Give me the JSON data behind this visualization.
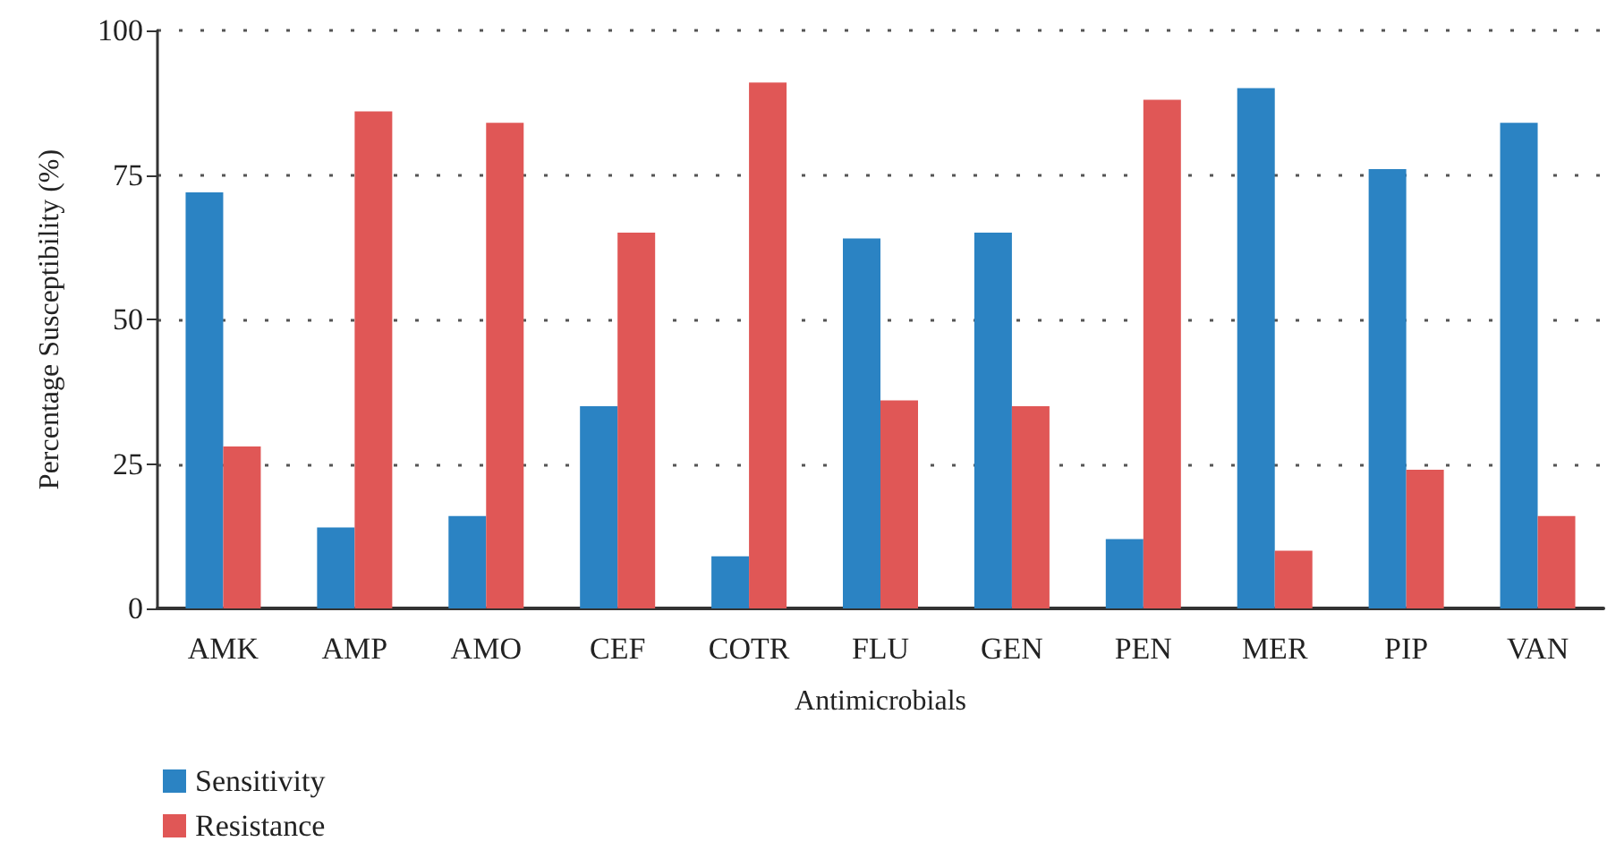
{
  "chart_data": {
    "type": "bar",
    "xlabel": "Antimicrobials",
    "ylabel": "Percentage Susceptibility (%)",
    "categories": [
      "AMK",
      "AMP",
      "AMO",
      "CEF",
      "COTR",
      "FLU",
      "GEN",
      "PEN",
      "MER",
      "PIP",
      "VAN"
    ],
    "series": [
      {
        "name": "Sensitivity",
        "color": "#2b83c3",
        "values": [
          72,
          14,
          16,
          35,
          9,
          64,
          65,
          12,
          90,
          76,
          84
        ]
      },
      {
        "name": "Resistance",
        "color": "#e05756",
        "values": [
          28,
          86,
          84,
          65,
          91,
          36,
          35,
          88,
          10,
          24,
          16
        ]
      }
    ],
    "ylim": [
      0,
      100
    ],
    "yticks": [
      0,
      25,
      50,
      75,
      100
    ],
    "grid": "y",
    "legend": "bottom left"
  }
}
